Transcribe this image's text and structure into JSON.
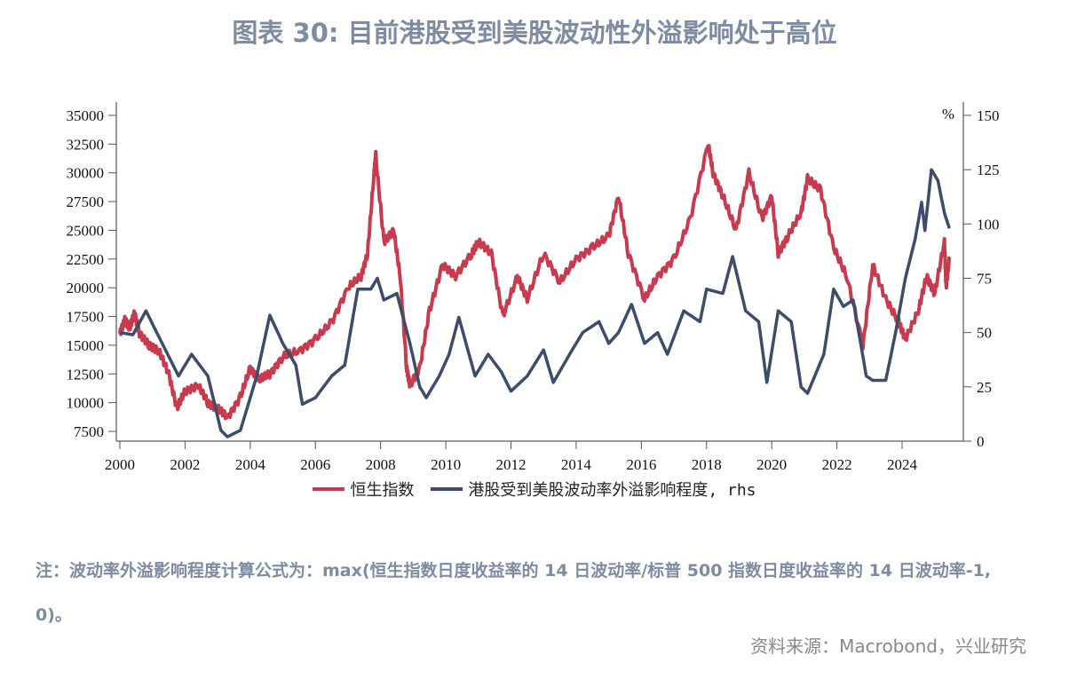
{
  "title": "图表 30: 目前港股受到美股波动性外溢影响处于高位",
  "note": "注：波动率外溢影响程度计算公式为：max(恒生指数日度收益率的 14 日波动率/标普 500 指数日度收益率的 14 日波动率-1, 0)。",
  "source": "资料来源：Macrobond，兴业研究",
  "chart_data": {
    "type": "line",
    "x_ticks": [
      "2000",
      "2002",
      "2004",
      "2006",
      "2008",
      "2010",
      "2012",
      "2014",
      "2016",
      "2018",
      "2020",
      "2022",
      "2024"
    ],
    "y_left": {
      "ticks": [
        "35000",
        "32500",
        "30000",
        "27500",
        "25000",
        "22500",
        "20000",
        "17500",
        "15000",
        "12500",
        "10000",
        "7500"
      ],
      "lim": [
        7000,
        36000
      ]
    },
    "y_right": {
      "ticks": [
        "150",
        "125",
        "100",
        "75",
        "50",
        "25",
        "0"
      ],
      "lim": [
        0,
        155
      ],
      "unit": "%"
    },
    "xlim": [
      1999.95,
      2026.0
    ],
    "grid": false,
    "legend_position": "bottom",
    "series": [
      {
        "name": "恒生指数",
        "axis": "left",
        "color": "#c83a4e",
        "x": [
          2000.0,
          2000.15,
          2000.3,
          2000.45,
          2000.6,
          2000.9,
          2001.2,
          2001.5,
          2001.75,
          2002.0,
          2002.4,
          2002.7,
          2003.0,
          2003.3,
          2003.7,
          2004.0,
          2004.3,
          2004.6,
          2005.0,
          2005.5,
          2006.0,
          2006.5,
          2007.0,
          2007.4,
          2007.6,
          2007.8,
          2007.85,
          2008.1,
          2008.4,
          2008.6,
          2008.8,
          2008.9,
          2009.2,
          2009.5,
          2009.9,
          2010.3,
          2010.8,
          2011.0,
          2011.4,
          2011.75,
          2012.2,
          2012.5,
          2013.0,
          2013.5,
          2014.0,
          2014.5,
          2015.0,
          2015.3,
          2015.6,
          2016.1,
          2016.5,
          2017.0,
          2017.5,
          2018.05,
          2018.2,
          2018.5,
          2018.9,
          2019.3,
          2019.7,
          2020.0,
          2020.2,
          2020.5,
          2020.9,
          2021.1,
          2021.5,
          2021.9,
          2022.3,
          2022.8,
          2023.1,
          2023.5,
          2023.9,
          2024.1,
          2024.5,
          2024.75,
          2025.0,
          2025.3,
          2025.35,
          2025.45
        ],
        "values": [
          16000,
          17200,
          16500,
          17800,
          16000,
          15000,
          14500,
          12500,
          9500,
          11000,
          11500,
          10000,
          9500,
          8700,
          10500,
          13000,
          12000,
          12500,
          14000,
          14500,
          15500,
          17000,
          20000,
          21000,
          23000,
          30000,
          31500,
          24000,
          25000,
          21000,
          13000,
          11500,
          13000,
          18000,
          22000,
          21000,
          23000,
          24000,
          23000,
          17500,
          21000,
          19000,
          23000,
          20500,
          22500,
          23500,
          24500,
          28000,
          23000,
          19000,
          21000,
          22500,
          26000,
          32500,
          30000,
          28000,
          25000,
          30000,
          26000,
          28000,
          23000,
          24500,
          26500,
          29500,
          28500,
          23500,
          21000,
          15000,
          22000,
          19000,
          17000,
          15500,
          18000,
          21000,
          19500,
          24000,
          20000,
          22500
        ]
      },
      {
        "name": "港股受到美股波动率外溢影响程度, rhs",
        "axis": "right",
        "color": "#3c4c6a",
        "x": [
          2000.0,
          2000.4,
          2000.8,
          2001.3,
          2001.8,
          2002.2,
          2002.7,
          2003.1,
          2003.3,
          2003.7,
          2004.2,
          2004.6,
          2005.0,
          2005.4,
          2005.6,
          2006.0,
          2006.5,
          2006.9,
          2007.3,
          2007.7,
          2007.9,
          2008.1,
          2008.5,
          2008.9,
          2009.2,
          2009.4,
          2009.8,
          2010.1,
          2010.4,
          2010.9,
          2011.3,
          2011.7,
          2012.0,
          2012.5,
          2013.0,
          2013.3,
          2013.8,
          2014.2,
          2014.7,
          2015.0,
          2015.3,
          2015.7,
          2016.1,
          2016.5,
          2016.8,
          2017.3,
          2017.8,
          2018.0,
          2018.5,
          2018.8,
          2019.2,
          2019.6,
          2019.85,
          2020.2,
          2020.6,
          2020.9,
          2021.1,
          2021.6,
          2021.9,
          2022.2,
          2022.5,
          2022.9,
          2023.1,
          2023.5,
          2023.8,
          2024.1,
          2024.4,
          2024.6,
          2024.7,
          2024.9,
          2025.1,
          2025.3,
          2025.45
        ],
        "values": [
          50,
          49,
          60,
          45,
          30,
          40,
          30,
          5,
          2,
          5,
          30,
          58,
          45,
          35,
          17,
          20,
          30,
          35,
          70,
          70,
          75,
          65,
          68,
          45,
          25,
          20,
          30,
          40,
          57,
          30,
          40,
          32,
          23,
          30,
          42,
          27,
          40,
          50,
          55,
          45,
          50,
          63,
          45,
          50,
          40,
          60,
          55,
          70,
          68,
          85,
          60,
          55,
          27,
          60,
          55,
          25,
          22,
          40,
          70,
          62,
          65,
          30,
          28,
          28,
          50,
          75,
          93,
          110,
          97,
          125,
          120,
          105,
          98
        ]
      }
    ]
  },
  "legend": [
    {
      "label": "恒生指数",
      "color": "#c83a4e"
    },
    {
      "label": "港股受到美股波动率外溢影响程度, rhs",
      "color": "#3c4c6a"
    }
  ]
}
